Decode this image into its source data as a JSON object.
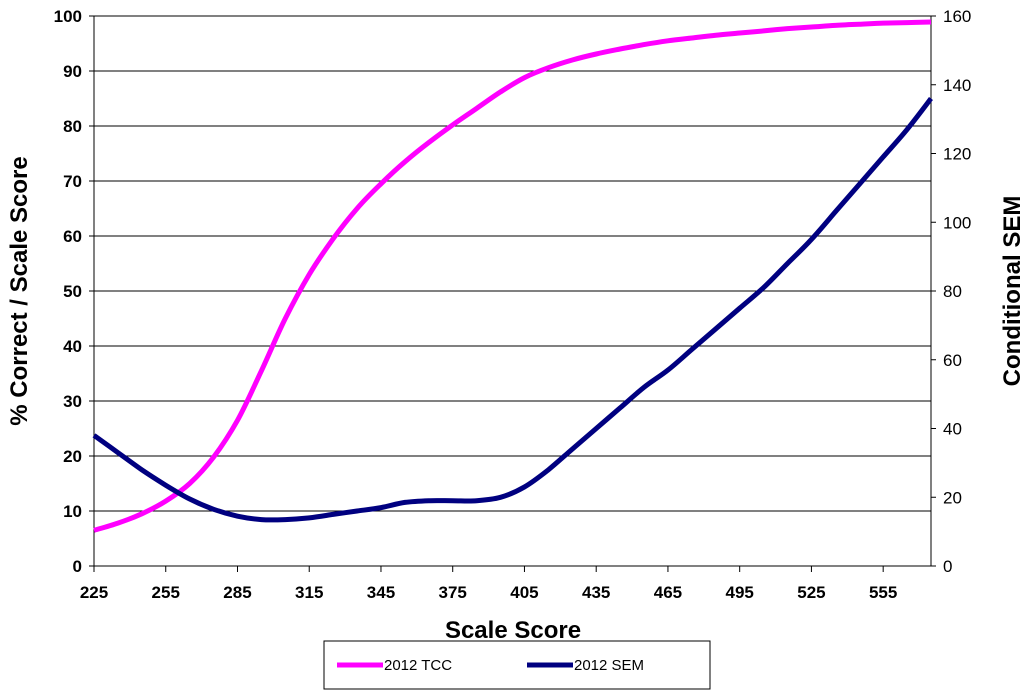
{
  "chart_data": {
    "type": "line",
    "xlabel": "Scale Score",
    "ylabel_left": "% Correct / Scale Score",
    "ylabel_right": "Conditional SEM",
    "x_range": [
      225,
      575
    ],
    "x_ticks": [
      225,
      255,
      285,
      315,
      345,
      375,
      405,
      435,
      465,
      495,
      525,
      555
    ],
    "y_left_range": [
      0,
      100
    ],
    "y_left_ticks": [
      0,
      10,
      20,
      30,
      40,
      50,
      60,
      70,
      80,
      90,
      100
    ],
    "y_right_range": [
      0,
      160
    ],
    "y_right_ticks": [
      0,
      20,
      40,
      60,
      80,
      100,
      120,
      140,
      160
    ],
    "grid": "horizontal",
    "legend_position": "bottom",
    "series": [
      {
        "name": "2012 TCC",
        "axis": "left",
        "color": "#ff00ff",
        "x": [
          225,
          235,
          245,
          255,
          265,
          275,
          285,
          295,
          305,
          315,
          325,
          335,
          345,
          355,
          365,
          375,
          385,
          395,
          405,
          415,
          425,
          435,
          445,
          455,
          465,
          475,
          485,
          495,
          505,
          515,
          525,
          535,
          545,
          555,
          565,
          575
        ],
        "y": [
          6.5,
          7.8,
          9.5,
          11.8,
          15,
          19.8,
          26.5,
          35.5,
          45,
          53,
          59.5,
          65,
          69.5,
          73.5,
          77,
          80.2,
          83.2,
          86.2,
          88.8,
          90.6,
          92,
          93.1,
          94,
          94.8,
          95.5,
          96,
          96.5,
          96.9,
          97.3,
          97.7,
          98,
          98.3,
          98.5,
          98.7,
          98.8,
          98.9
        ]
      },
      {
        "name": "2012 SEM",
        "axis": "right",
        "color": "#000080",
        "x": [
          225,
          235,
          245,
          255,
          265,
          275,
          285,
          295,
          305,
          315,
          325,
          335,
          345,
          355,
          365,
          375,
          385,
          395,
          405,
          415,
          425,
          435,
          445,
          455,
          465,
          475,
          485,
          495,
          505,
          515,
          525,
          535,
          545,
          555,
          565,
          575
        ],
        "y": [
          38,
          33,
          28,
          23.5,
          19.5,
          16.5,
          14.5,
          13.5,
          13.5,
          14,
          15,
          16,
          17,
          18.5,
          19,
          19,
          19,
          20,
          23,
          28,
          34,
          40,
          46,
          52,
          57,
          63,
          69,
          75,
          81,
          88,
          95,
          103,
          111,
          119,
          127,
          136
        ]
      }
    ]
  }
}
